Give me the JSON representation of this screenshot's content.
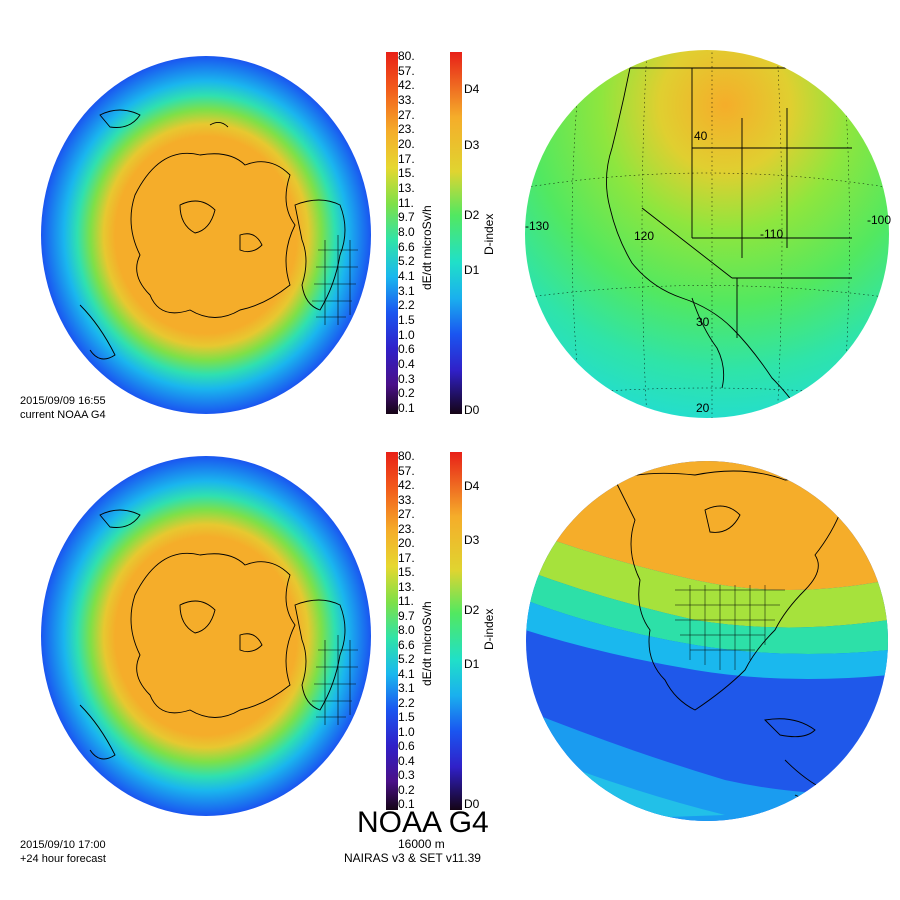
{
  "title": "NOAA G4",
  "altitude": "16000 m",
  "model": "NAIRAS v3 & SET v11.39",
  "panels": [
    {
      "datetime": "2015/09/09 16:55",
      "label": "current NOAA G4"
    },
    {
      "datetime": "2015/09/10 17:00",
      "label": "+24 hour forecast"
    }
  ],
  "dose_scale": {
    "axis_title": "dE/dt microSv/h",
    "ticks": [
      "80.",
      "57.",
      "42.",
      "33.",
      "27.",
      "23.",
      "20.",
      "17.",
      "15.",
      "13.",
      "11.",
      "9.7",
      "8.0",
      "6.6",
      "5.2",
      "4.1",
      "3.1",
      "2.2",
      "1.5",
      "1.0",
      "0.6",
      "0.4",
      "0.3",
      "0.2",
      "0.1"
    ]
  },
  "dindex_scale": {
    "axis_title": "D-index",
    "ticks": [
      "D4",
      "D3",
      "D2",
      "D1",
      "D0"
    ]
  },
  "map_labels": {
    "longitudes": [
      "-130",
      "120",
      "-110",
      "-100"
    ],
    "latitudes": [
      "40",
      "30",
      "20"
    ]
  },
  "colors": {
    "polar_orange": "#f5ad2a",
    "green": "#3ee85a",
    "cyan": "#1ac8e8",
    "blue": "#1a4ef0",
    "ocean_blue": "#1f5ae8"
  }
}
